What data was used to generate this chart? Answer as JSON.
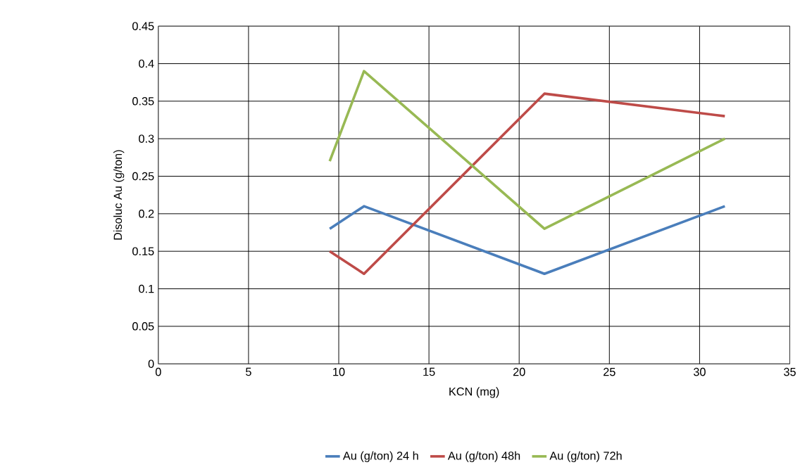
{
  "chart_data": {
    "type": "line",
    "xlabel": "KCN (mg)",
    "ylabel": "Disoluc Au (g/ton)",
    "x": [
      9.5,
      11.4,
      21.4,
      31.4
    ],
    "series": [
      {
        "name": "Au (g/ton) 24 h",
        "color": "#4a7ebb",
        "values": [
          0.18,
          0.21,
          0.12,
          0.21
        ]
      },
      {
        "name": "Au (g/ton) 48h",
        "color": "#be4b48",
        "values": [
          0.15,
          0.12,
          0.36,
          0.33
        ]
      },
      {
        "name": "Au (g/ton) 72h",
        "color": "#98b954",
        "values": [
          0.27,
          0.39,
          0.18,
          0.3
        ]
      }
    ],
    "xlim": [
      0,
      35
    ],
    "xticks": [
      0,
      5,
      10,
      15,
      20,
      25,
      30,
      35
    ],
    "ylim": [
      0,
      0.45
    ],
    "yticks": [
      0,
      0.05,
      0.1,
      0.15,
      0.2,
      0.25,
      0.3,
      0.35,
      0.4,
      0.45
    ],
    "grid": true,
    "legend": "bottom",
    "marker": "none",
    "line_style": "solid"
  }
}
